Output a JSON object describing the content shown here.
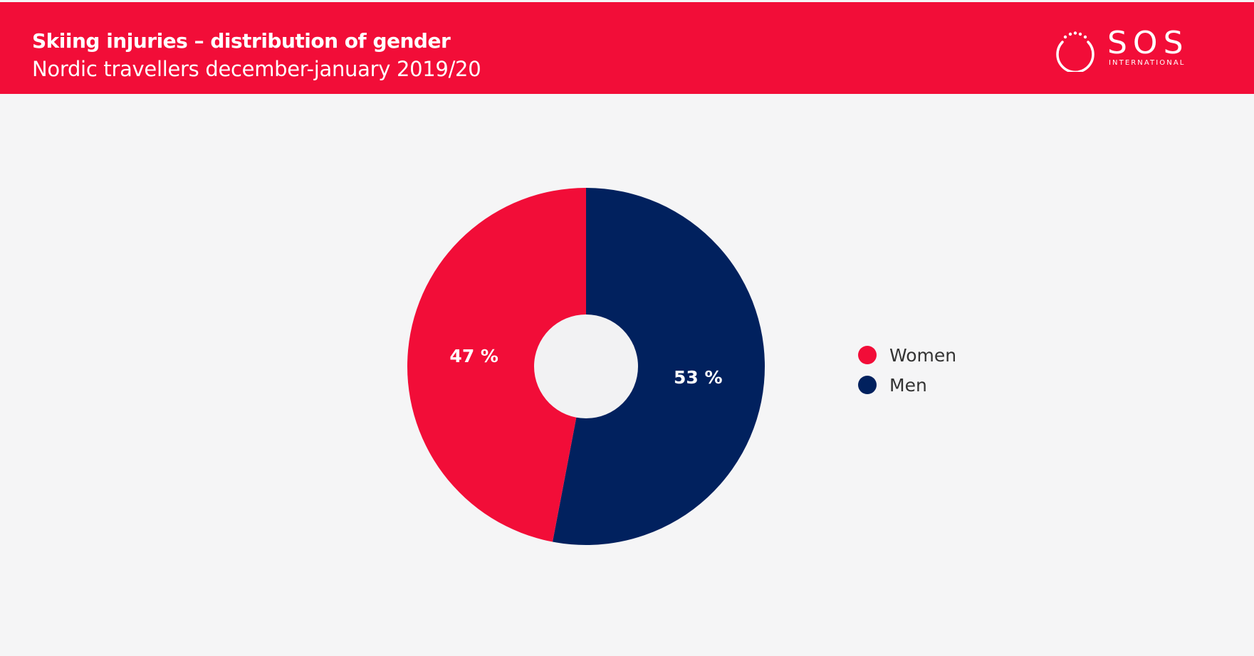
{
  "header": {
    "title": "Skiing injuries – distribution of gender",
    "subtitle": "Nordic travellers december-january 2019/20",
    "background_color": "#f20d38"
  },
  "logo": {
    "name": "SOS",
    "tagline": "INTERNATIONAL",
    "icon": "dotted-ring-icon"
  },
  "chart_data": {
    "type": "pie",
    "donut": true,
    "title": "",
    "slices": [
      {
        "label": "Women",
        "value": 47,
        "display": "47 %",
        "color": "#f20d38"
      },
      {
        "label": "Men",
        "value": 53,
        "display": "53 %",
        "color": "#01215e"
      }
    ],
    "legend_position": "right"
  }
}
